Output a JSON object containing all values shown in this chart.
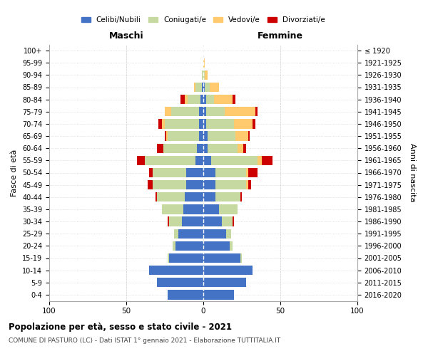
{
  "age_groups": [
    "0-4",
    "5-9",
    "10-14",
    "15-19",
    "20-24",
    "25-29",
    "30-34",
    "35-39",
    "40-44",
    "45-49",
    "50-54",
    "55-59",
    "60-64",
    "65-69",
    "70-74",
    "75-79",
    "80-84",
    "85-89",
    "90-94",
    "95-99",
    "100+"
  ],
  "birth_years": [
    "2016-2020",
    "2011-2015",
    "2006-2010",
    "2001-2005",
    "1996-2000",
    "1991-1995",
    "1986-1990",
    "1981-1985",
    "1976-1980",
    "1971-1975",
    "1966-1970",
    "1961-1965",
    "1956-1960",
    "1951-1955",
    "1946-1950",
    "1941-1945",
    "1936-1940",
    "1931-1935",
    "1926-1930",
    "1921-1925",
    "≤ 1920"
  ],
  "males_celibi": [
    23,
    30,
    35,
    22,
    18,
    16,
    14,
    13,
    12,
    11,
    11,
    5,
    4,
    3,
    3,
    3,
    2,
    1,
    0,
    0,
    0
  ],
  "males_coniugati": [
    0,
    0,
    0,
    1,
    2,
    3,
    8,
    14,
    18,
    22,
    22,
    33,
    22,
    20,
    22,
    18,
    8,
    4,
    1,
    0,
    0
  ],
  "males_vedovi": [
    0,
    0,
    0,
    0,
    0,
    0,
    0,
    0,
    0,
    0,
    0,
    0,
    0,
    1,
    2,
    4,
    2,
    1,
    0,
    0,
    0
  ],
  "males_divorziati": [
    0,
    0,
    0,
    0,
    0,
    0,
    1,
    0,
    1,
    3,
    2,
    5,
    4,
    1,
    2,
    0,
    3,
    0,
    0,
    0,
    0
  ],
  "females_nubili": [
    20,
    28,
    32,
    24,
    17,
    15,
    12,
    10,
    8,
    8,
    8,
    5,
    3,
    3,
    2,
    2,
    2,
    1,
    0,
    0,
    0
  ],
  "females_coniugate": [
    0,
    0,
    0,
    1,
    2,
    3,
    7,
    12,
    16,
    20,
    20,
    30,
    19,
    18,
    18,
    12,
    5,
    3,
    1,
    0,
    0
  ],
  "females_vedove": [
    0,
    0,
    0,
    0,
    0,
    0,
    0,
    0,
    0,
    1,
    1,
    3,
    4,
    8,
    12,
    20,
    12,
    6,
    2,
    1,
    0
  ],
  "females_divorziate": [
    0,
    0,
    0,
    0,
    0,
    0,
    1,
    0,
    1,
    2,
    6,
    7,
    2,
    1,
    2,
    1,
    2,
    0,
    0,
    0,
    0
  ],
  "color_celibi": "#4472c4",
  "color_coniugati": "#c5d9a0",
  "color_vedovi": "#ffc96e",
  "color_divorziati": "#cc0000",
  "title": "Popolazione per età, sesso e stato civile - 2021",
  "subtitle": "COMUNE DI PASTURO (LC) - Dati ISTAT 1° gennaio 2021 - Elaborazione TUTTITALIA.IT",
  "label_maschi": "Maschi",
  "label_femmine": "Femmine",
  "ylabel_left": "Fasce di età",
  "ylabel_right": "Anni di nascita",
  "legend_labels": [
    "Celibi/Nubili",
    "Coniugati/e",
    "Vedovi/e",
    "Divorziati/e"
  ],
  "xlim": 100
}
